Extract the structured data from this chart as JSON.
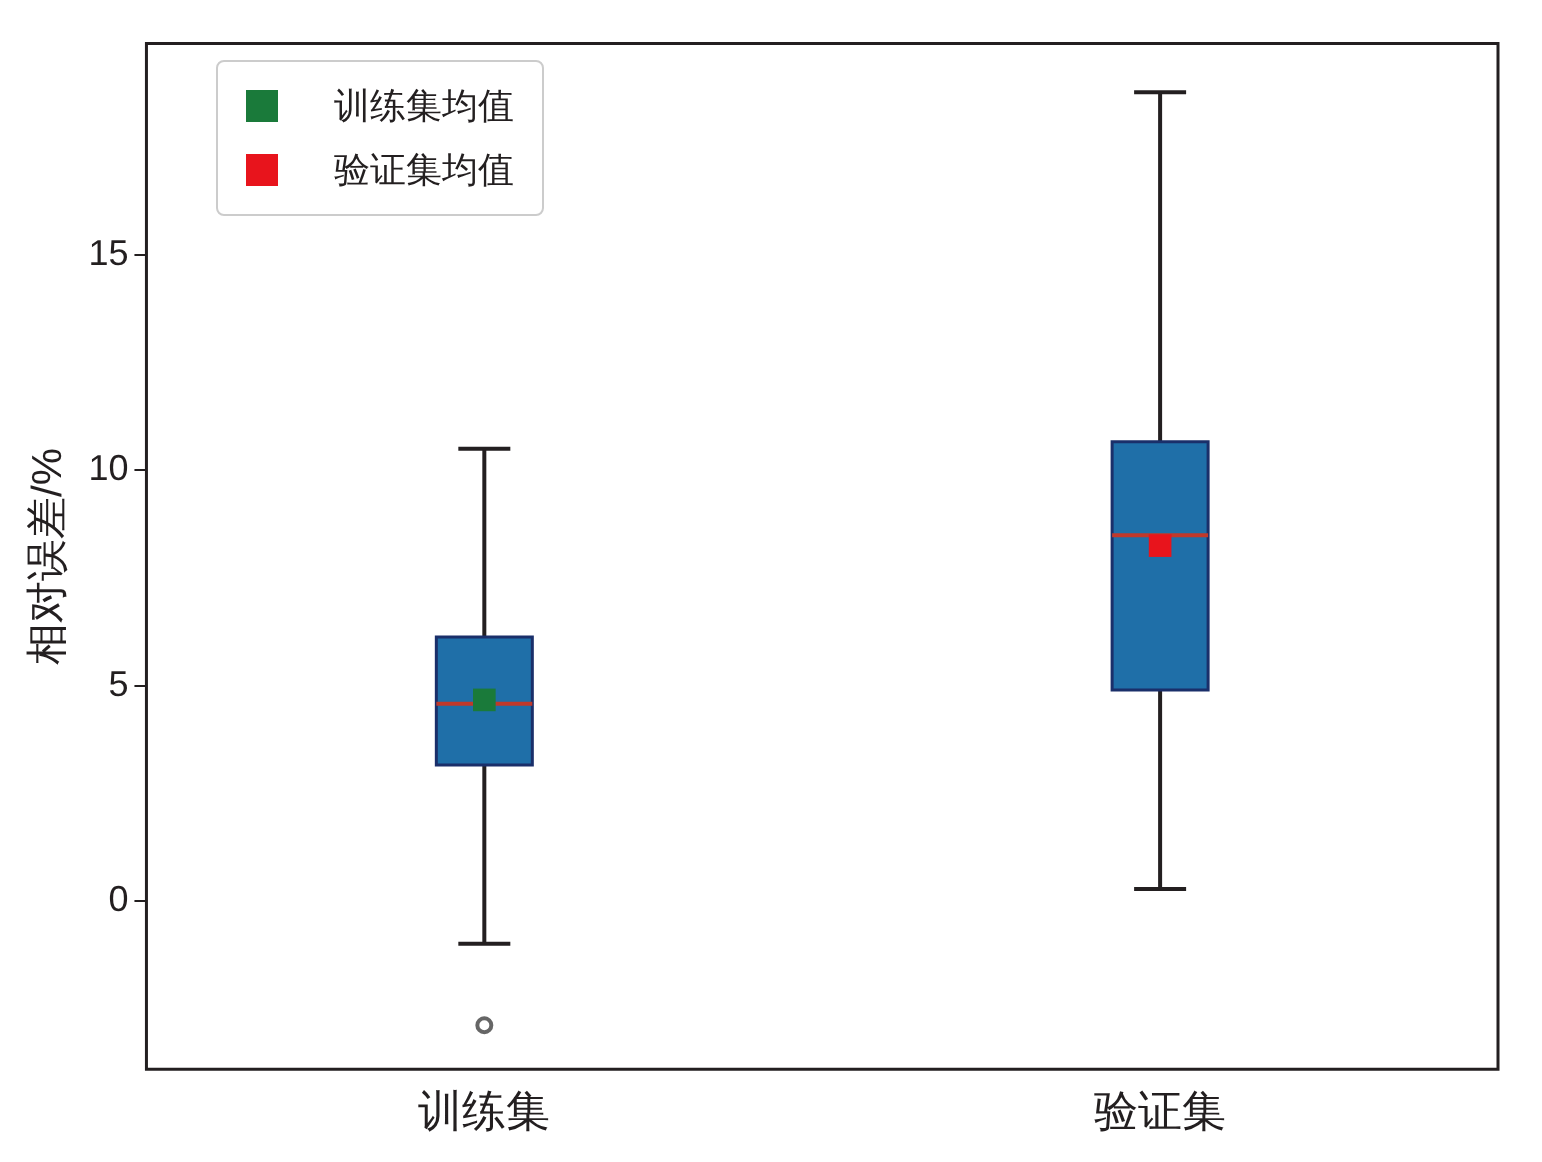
{
  "chart_data": {
    "type": "box",
    "categories": [
      "训练集",
      "验证集"
    ],
    "ylabel": "相对误差/%",
    "color": "#1f6fa8",
    "ylim": [
      -3.9,
      19.9
    ],
    "yticks": [
      0,
      5,
      10,
      15
    ],
    "legend": "top left",
    "marker": "square",
    "boxes": [
      {
        "low": -0.99,
        "q1": 3.16,
        "median": 4.58,
        "q3": 6.13,
        "high": 10.5,
        "outliers": [
          -2.88
        ]
      },
      {
        "low": 0.28,
        "q1": 4.9,
        "median": 8.49,
        "q3": 10.66,
        "high": 18.77
      }
    ],
    "series": [
      {
        "type": "scatter",
        "name": "训练集均值",
        "color": "#1a7a3a",
        "x": [
          "训练集"
        ],
        "values": [
          4.67
        ]
      },
      {
        "type": "scatter",
        "name": "验证集均值",
        "color": "#e8141c",
        "x": [
          "验证集"
        ],
        "values": [
          8.25
        ]
      }
    ]
  }
}
